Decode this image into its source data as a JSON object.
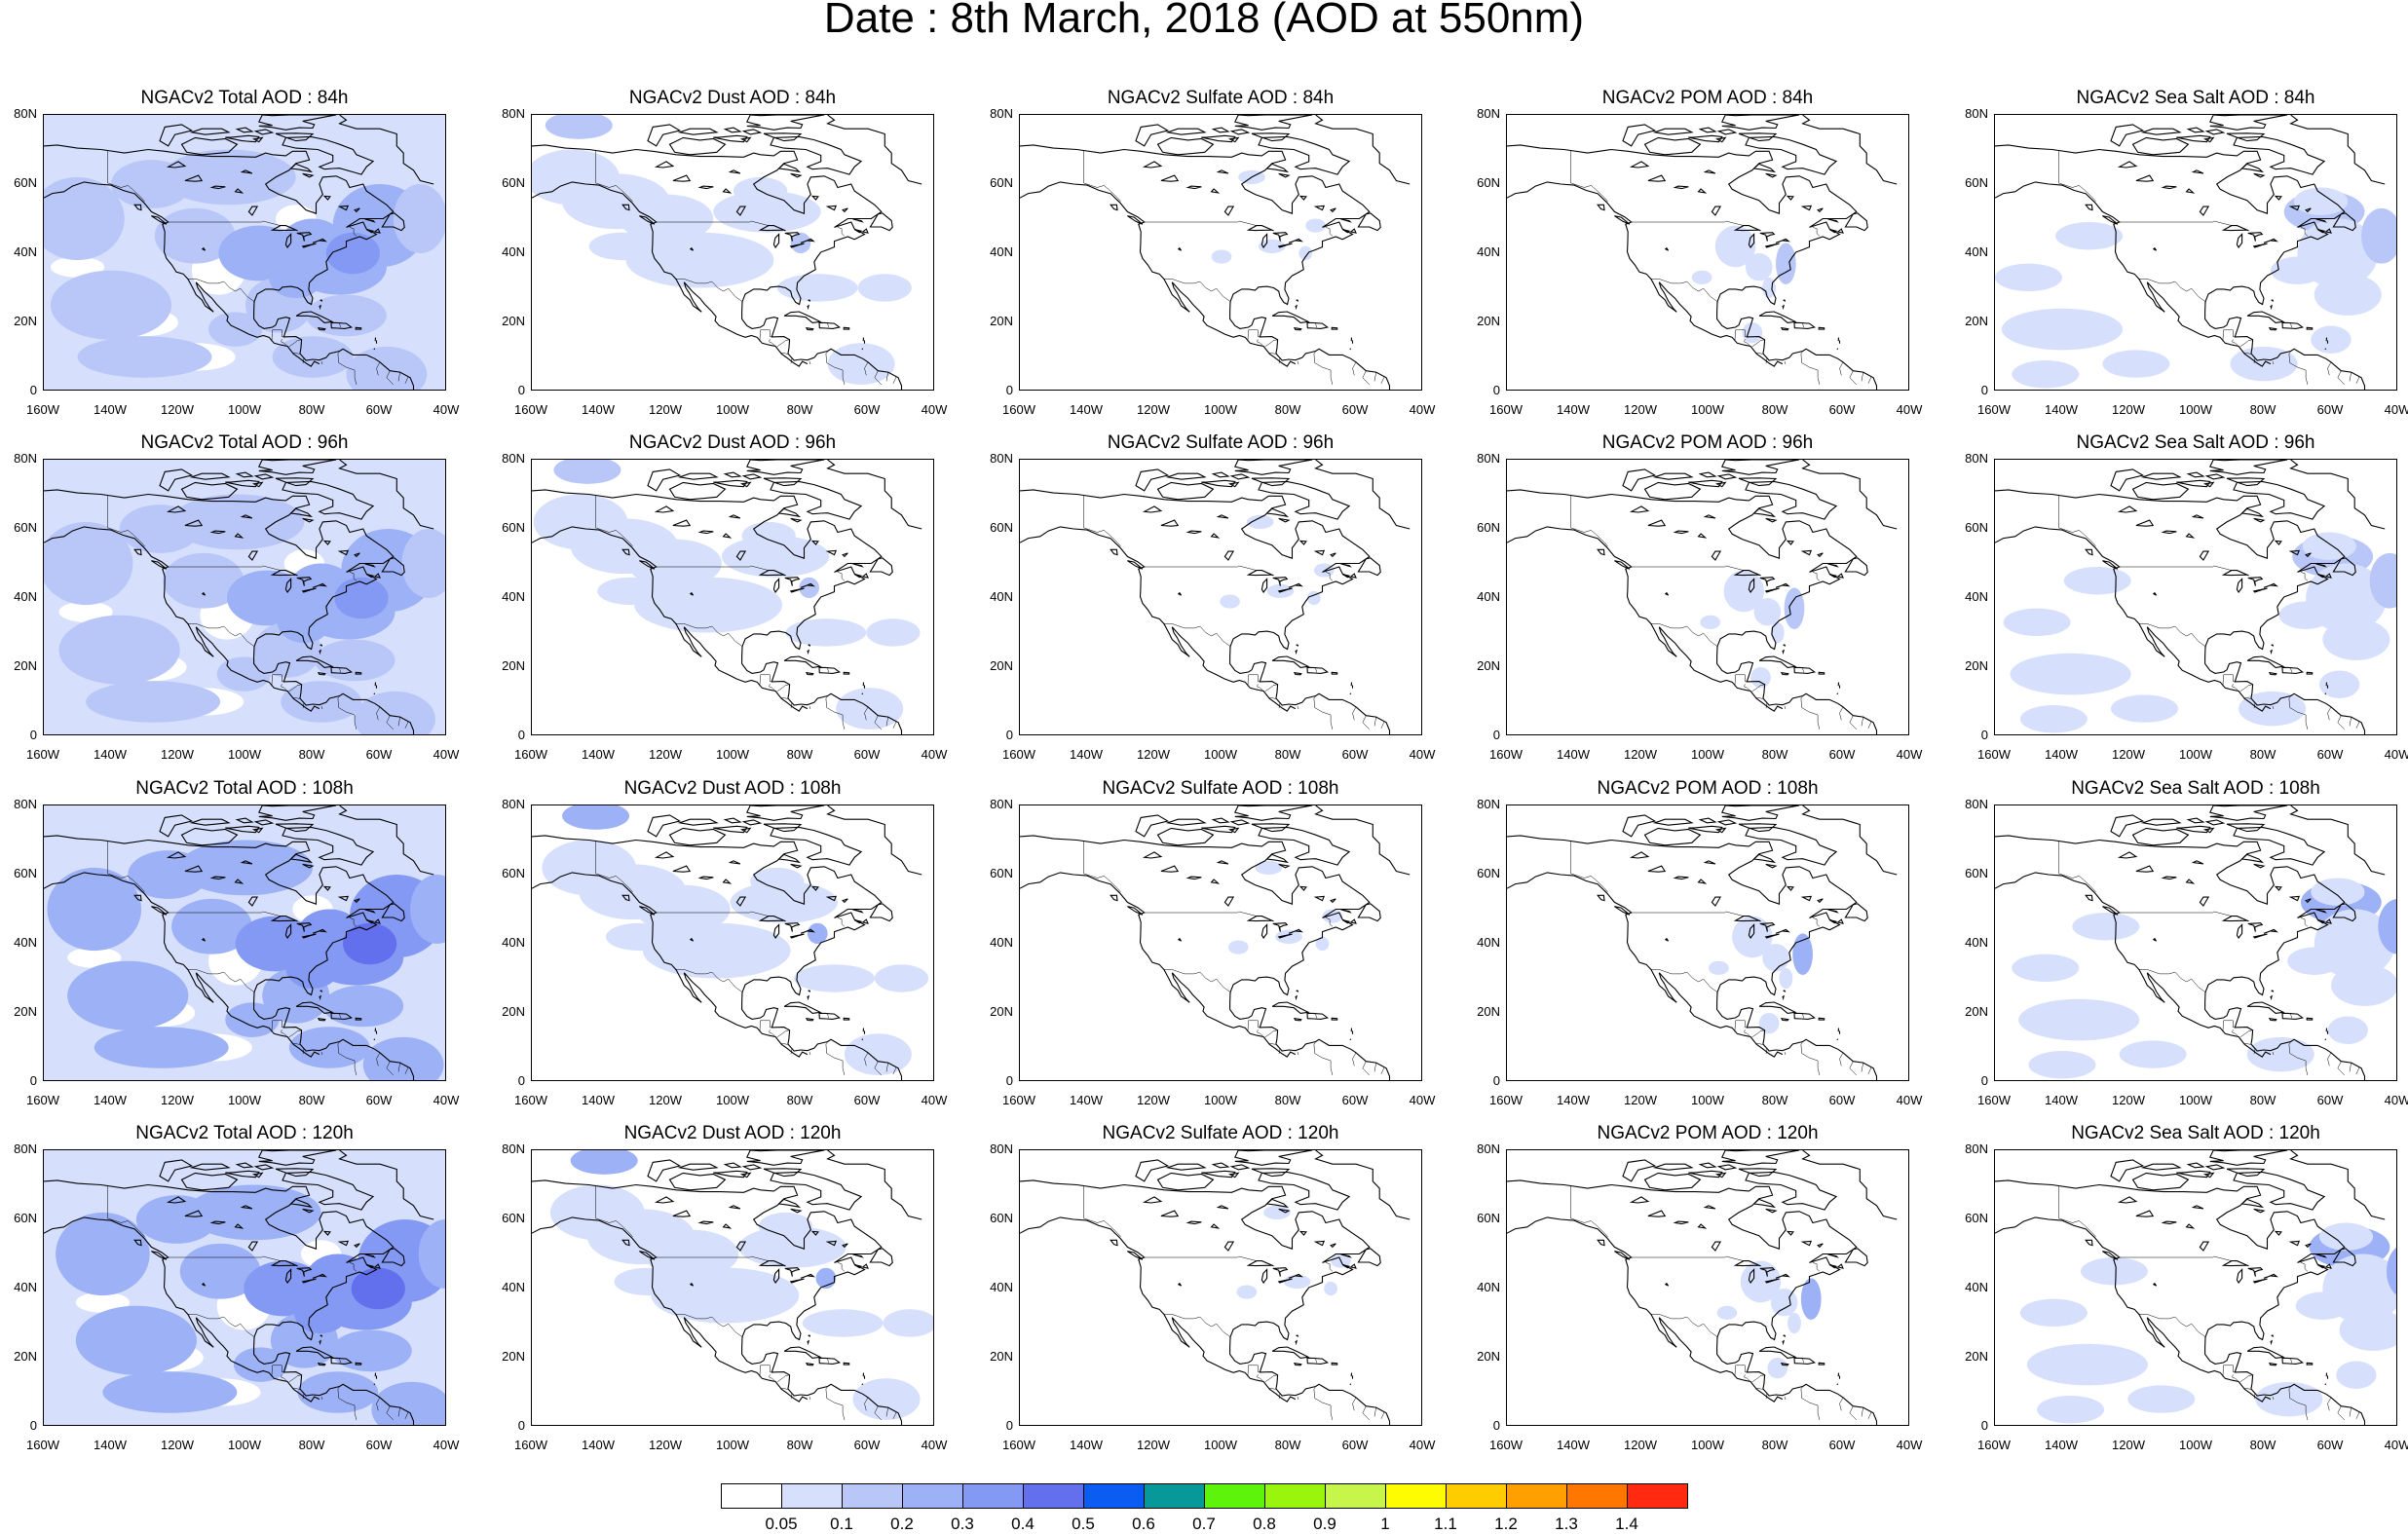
{
  "title": "Date : 8th March, 2018 (AOD at 550nm)",
  "panels": [
    {
      "title": "NGACv2 Total AOD : 84h",
      "species": "total"
    },
    {
      "title": "NGACv2 Dust AOD : 84h",
      "species": "dust"
    },
    {
      "title": "NGACv2 Sulfate AOD : 84h",
      "species": "sulfate"
    },
    {
      "title": "NGACv2 POM AOD : 84h",
      "species": "pom"
    },
    {
      "title": "NGACv2 Sea Salt AOD : 84h",
      "species": "seasalt"
    },
    {
      "title": "NGACv2 Total AOD : 96h",
      "species": "total"
    },
    {
      "title": "NGACv2 Dust AOD : 96h",
      "species": "dust"
    },
    {
      "title": "NGACv2 Sulfate AOD : 96h",
      "species": "sulfate"
    },
    {
      "title": "NGACv2 POM AOD : 96h",
      "species": "pom"
    },
    {
      "title": "NGACv2 Sea Salt AOD : 96h",
      "species": "seasalt"
    },
    {
      "title": "NGACv2 Total AOD : 108h",
      "species": "total"
    },
    {
      "title": "NGACv2 Dust AOD : 108h",
      "species": "dust"
    },
    {
      "title": "NGACv2 Sulfate AOD : 108h",
      "species": "sulfate"
    },
    {
      "title": "NGACv2 POM AOD : 108h",
      "species": "pom"
    },
    {
      "title": "NGACv2 Sea Salt AOD : 108h",
      "species": "seasalt"
    },
    {
      "title": "NGACv2 Total AOD : 120h",
      "species": "total"
    },
    {
      "title": "NGACv2 Dust AOD : 120h",
      "species": "dust"
    },
    {
      "title": "NGACv2 Sulfate AOD : 120h",
      "species": "sulfate"
    },
    {
      "title": "NGACv2 POM AOD : 120h",
      "species": "pom"
    },
    {
      "title": "NGACv2 Sea Salt  AOD : 120h",
      "species": "seasalt"
    }
  ],
  "axes": {
    "lat_ticks": [
      "80N",
      "60N",
      "40N",
      "20N",
      "0"
    ],
    "lon_ticks": [
      "160W",
      "140W",
      "120W",
      "100W",
      "80W",
      "60W",
      "40W"
    ]
  },
  "colorbar": {
    "colors": [
      "#ffffff",
      "#d6dffc",
      "#b9c7f8",
      "#9cb1f6",
      "#8499f4",
      "#6270ee",
      "#0a5cf2",
      "#07999a",
      "#5ef30b",
      "#99f50b",
      "#c8f54a",
      "#fffb00",
      "#ffcc00",
      "#ff9f00",
      "#ff7700",
      "#ff2a10"
    ],
    "labels": [
      "0.05",
      "0.1",
      "0.2",
      "0.3",
      "0.4",
      "0.5",
      "0.6",
      "0.7",
      "0.8",
      "0.9",
      "1",
      "1.1",
      "1.2",
      "1.3",
      "1.4"
    ]
  }
}
